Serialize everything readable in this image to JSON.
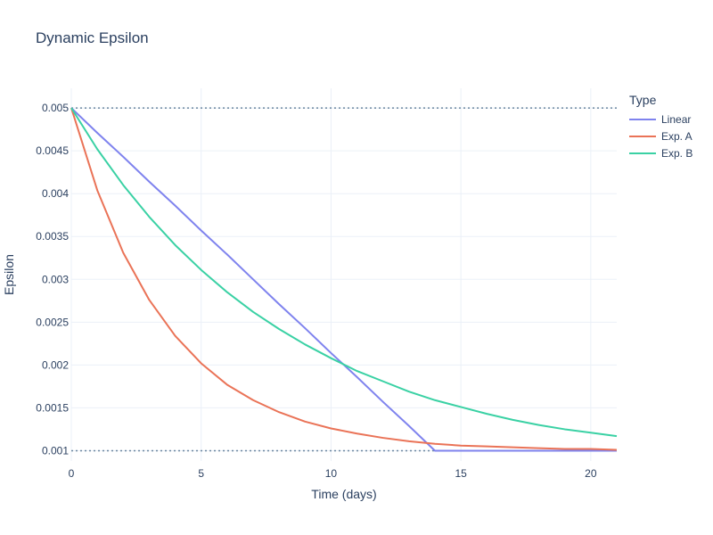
{
  "chart_data": {
    "type": "line",
    "title": "Dynamic Epsilon",
    "xlabel": "Time (days)",
    "ylabel": "Epsilon",
    "xlim": [
      0,
      21
    ],
    "ylim": [
      0.00088,
      0.00523
    ],
    "xticks": [
      0,
      5,
      10,
      15,
      20
    ],
    "yticks": [
      0.001,
      0.0015,
      0.002,
      0.0025,
      0.003,
      0.0035,
      0.004,
      0.0045,
      0.005
    ],
    "ytick_labels": [
      "0.001",
      "0.0015",
      "0.002",
      "0.0025",
      "0.003",
      "0.0035",
      "0.004",
      "0.0045",
      "0.005"
    ],
    "grid": true,
    "legend": {
      "title": "Type",
      "position": "top-right"
    },
    "reference_lines": [
      {
        "y": 0.005,
        "style": "dotted",
        "color": "#6a86a0"
      },
      {
        "y": 0.001,
        "style": "dotted",
        "color": "#6a86a0"
      }
    ],
    "series": [
      {
        "name": "Linear",
        "color": "#7f83ee",
        "x": [
          0,
          1,
          2,
          3,
          4,
          5,
          6,
          7,
          8,
          9,
          10,
          11,
          12,
          13,
          14,
          15,
          16,
          17,
          18,
          19,
          20,
          21
        ],
        "y": [
          0.005,
          0.00471,
          0.00443,
          0.00414,
          0.00386,
          0.00357,
          0.00329,
          0.003,
          0.00271,
          0.00243,
          0.00214,
          0.00186,
          0.00157,
          0.00129,
          0.001,
          0.001,
          0.001,
          0.001,
          0.001,
          0.001,
          0.001,
          0.001
        ]
      },
      {
        "name": "Exp. A",
        "color": "#ea7357",
        "x": [
          0,
          1,
          2,
          3,
          4,
          5,
          6,
          7,
          8,
          9,
          10,
          11,
          12,
          13,
          14,
          15,
          16,
          17,
          18,
          19,
          20,
          21
        ],
        "y": [
          0.005,
          0.00404,
          0.00331,
          0.00276,
          0.00234,
          0.00202,
          0.00177,
          0.00159,
          0.00145,
          0.00134,
          0.00126,
          0.0012,
          0.00115,
          0.00111,
          0.00108,
          0.00106,
          0.00105,
          0.00104,
          0.00103,
          0.00102,
          0.00102,
          0.00101
        ]
      },
      {
        "name": "Exp. B",
        "color": "#3ad1a4",
        "x": [
          0,
          1,
          2,
          3,
          4,
          5,
          6,
          7,
          8,
          9,
          10,
          11,
          12,
          13,
          14,
          15,
          16,
          17,
          18,
          19,
          20,
          21
        ],
        "y": [
          0.005,
          0.00452,
          0.0041,
          0.00373,
          0.0034,
          0.00311,
          0.00285,
          0.00262,
          0.00242,
          0.00224,
          0.00208,
          0.00193,
          0.00181,
          0.00169,
          0.00159,
          0.00151,
          0.00143,
          0.00136,
          0.0013,
          0.00125,
          0.00121,
          0.00117
        ]
      }
    ]
  }
}
